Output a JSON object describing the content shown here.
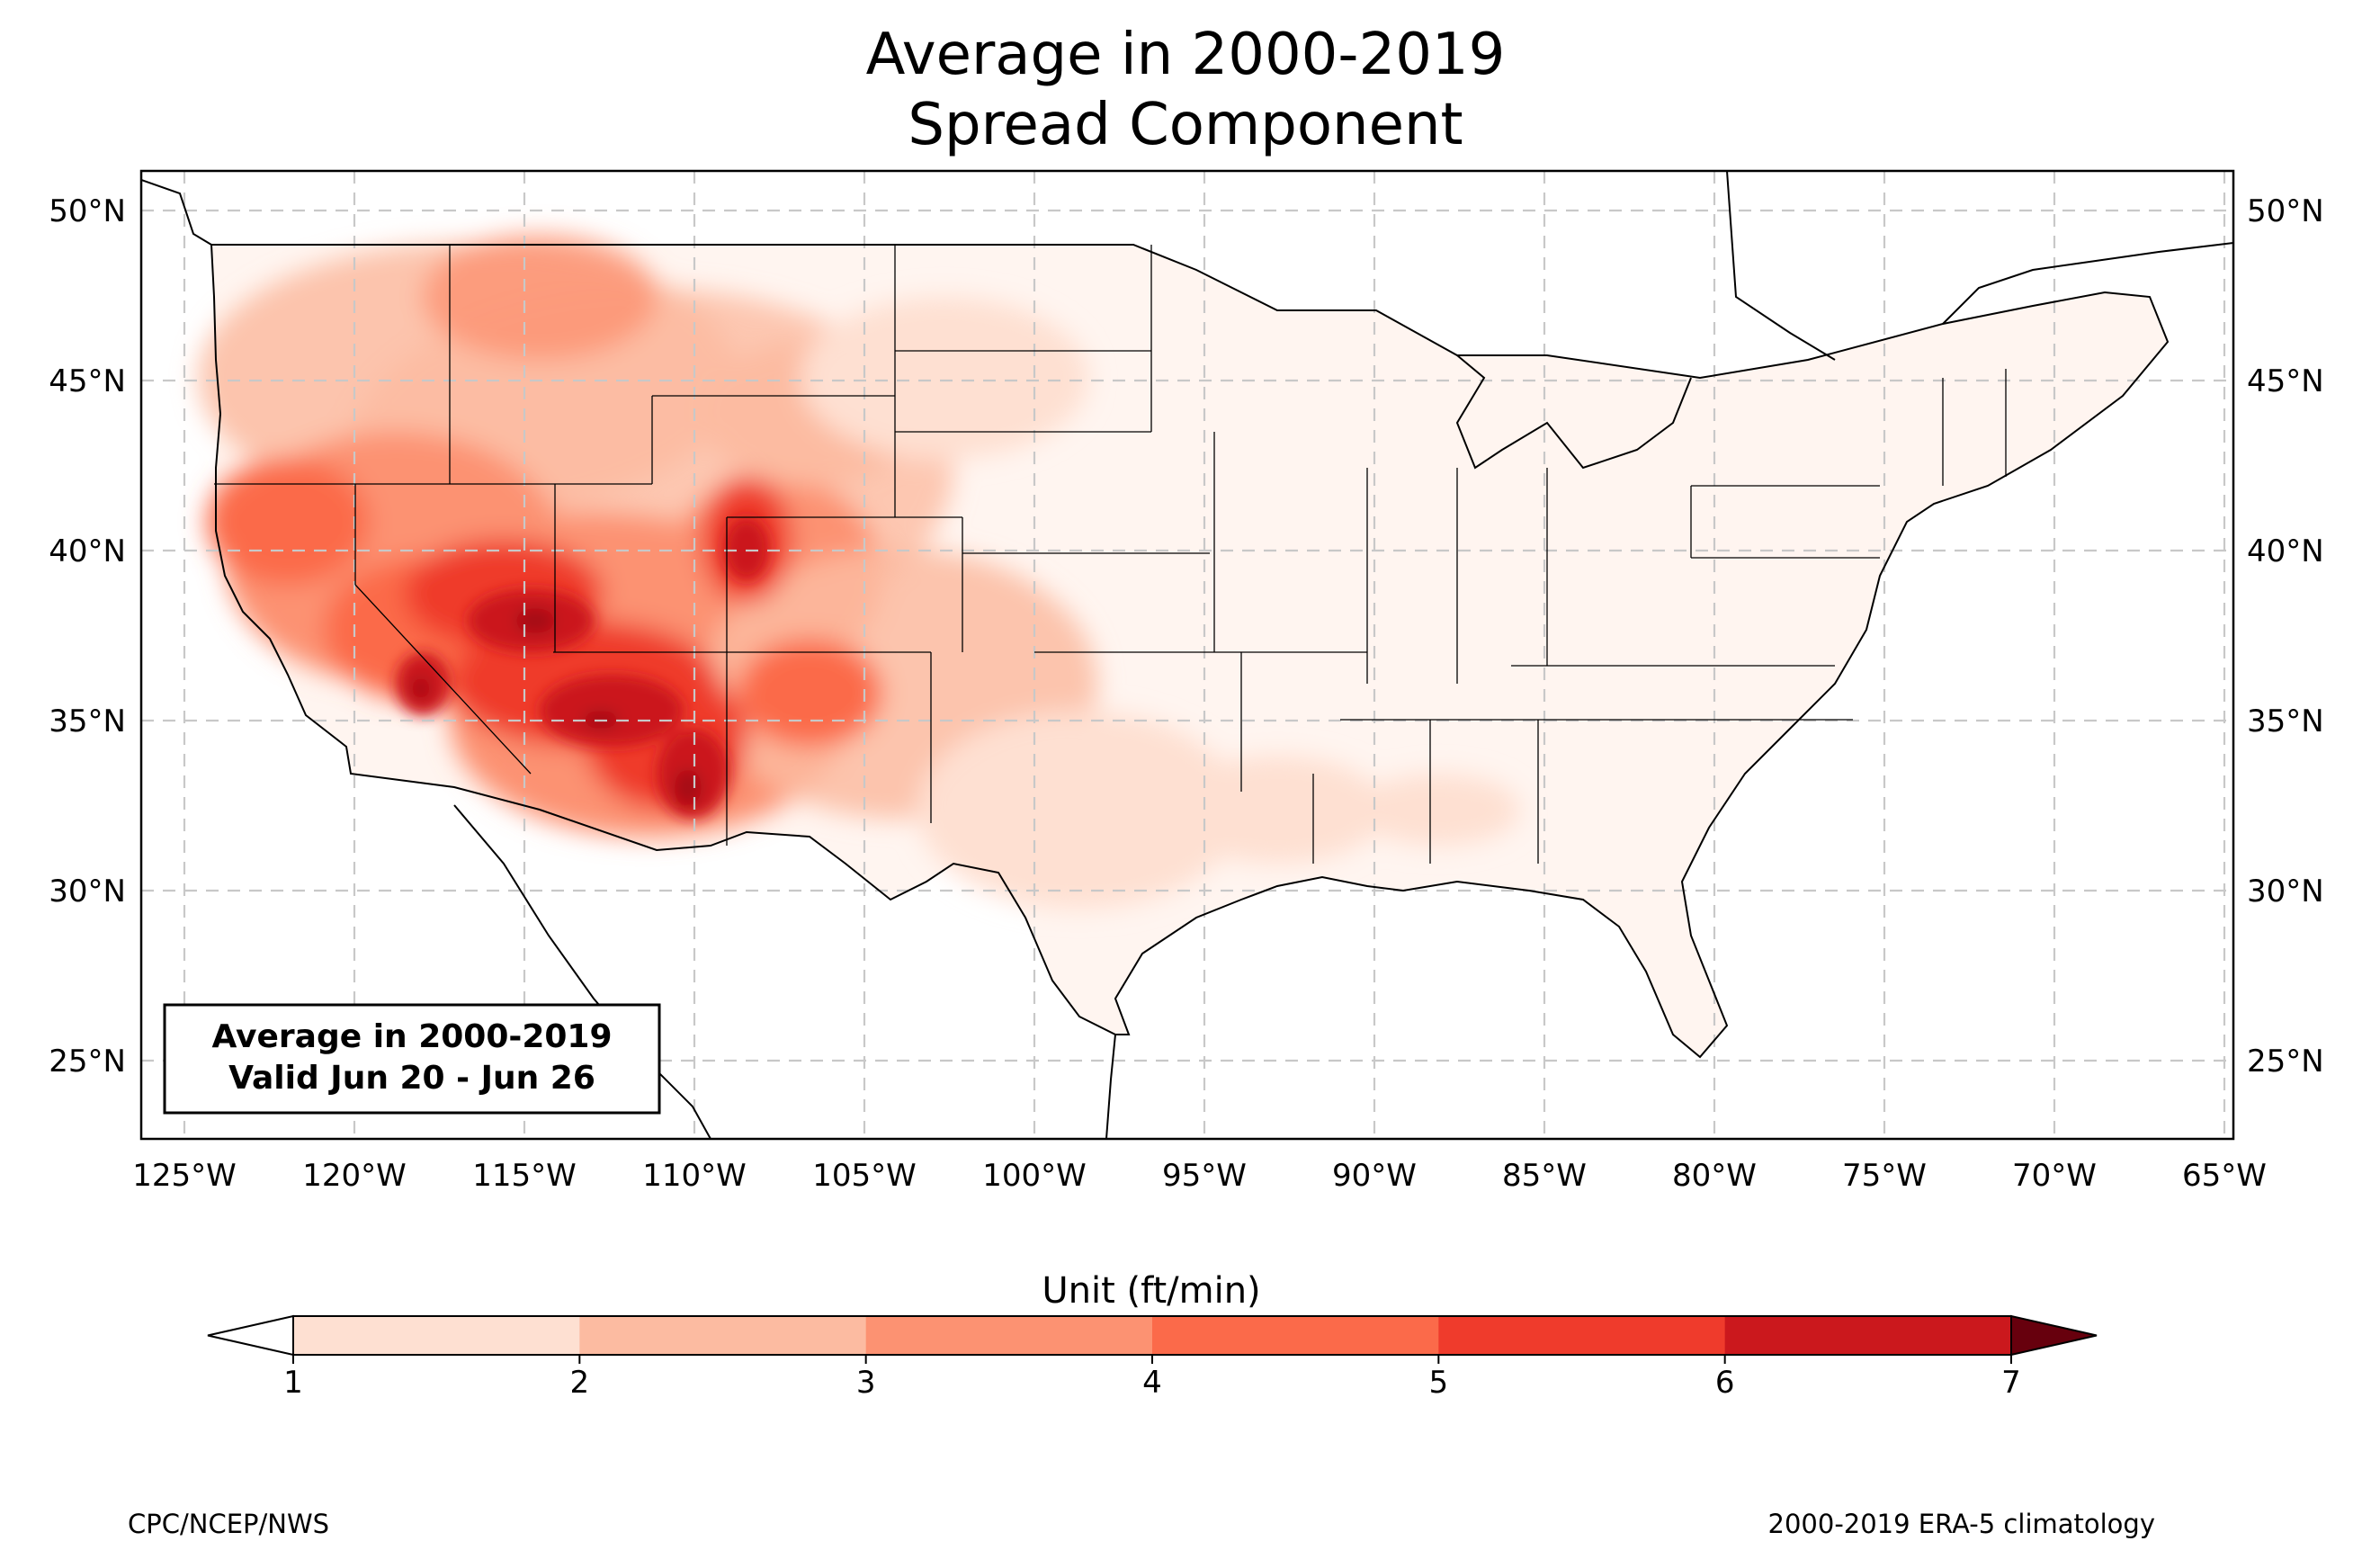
{
  "title_line1": "Average in 2000-2019",
  "title_line2": "Spread Component",
  "info_box": {
    "line1": "Average in 2000-2019",
    "line2": "Valid Jun 20 - Jun 26"
  },
  "lat_labels": [
    "50°N",
    "45°N",
    "40°N",
    "35°N",
    "30°N",
    "25°N"
  ],
  "lon_labels": [
    "125°W",
    "120°W",
    "115°W",
    "110°W",
    "105°W",
    "100°W",
    "95°W",
    "90°W",
    "85°W",
    "80°W",
    "75°W",
    "70°W",
    "65°W"
  ],
  "colorbar": {
    "title": "Unit (ft/min)",
    "ticks": [
      "1",
      "2",
      "3",
      "4",
      "5",
      "6",
      "7"
    ],
    "colors": [
      "#fee0d2",
      "#fcbba1",
      "#fc9272",
      "#fb6a4a",
      "#ef3b2c",
      "#cb181d",
      "#a50f15",
      "#67000d"
    ],
    "under_color": "#ffffff",
    "over_color": "#67000d"
  },
  "credits": {
    "left": "CPC/NCEP/NWS",
    "right": "2000-2019 ERA-5 climatology"
  }
}
